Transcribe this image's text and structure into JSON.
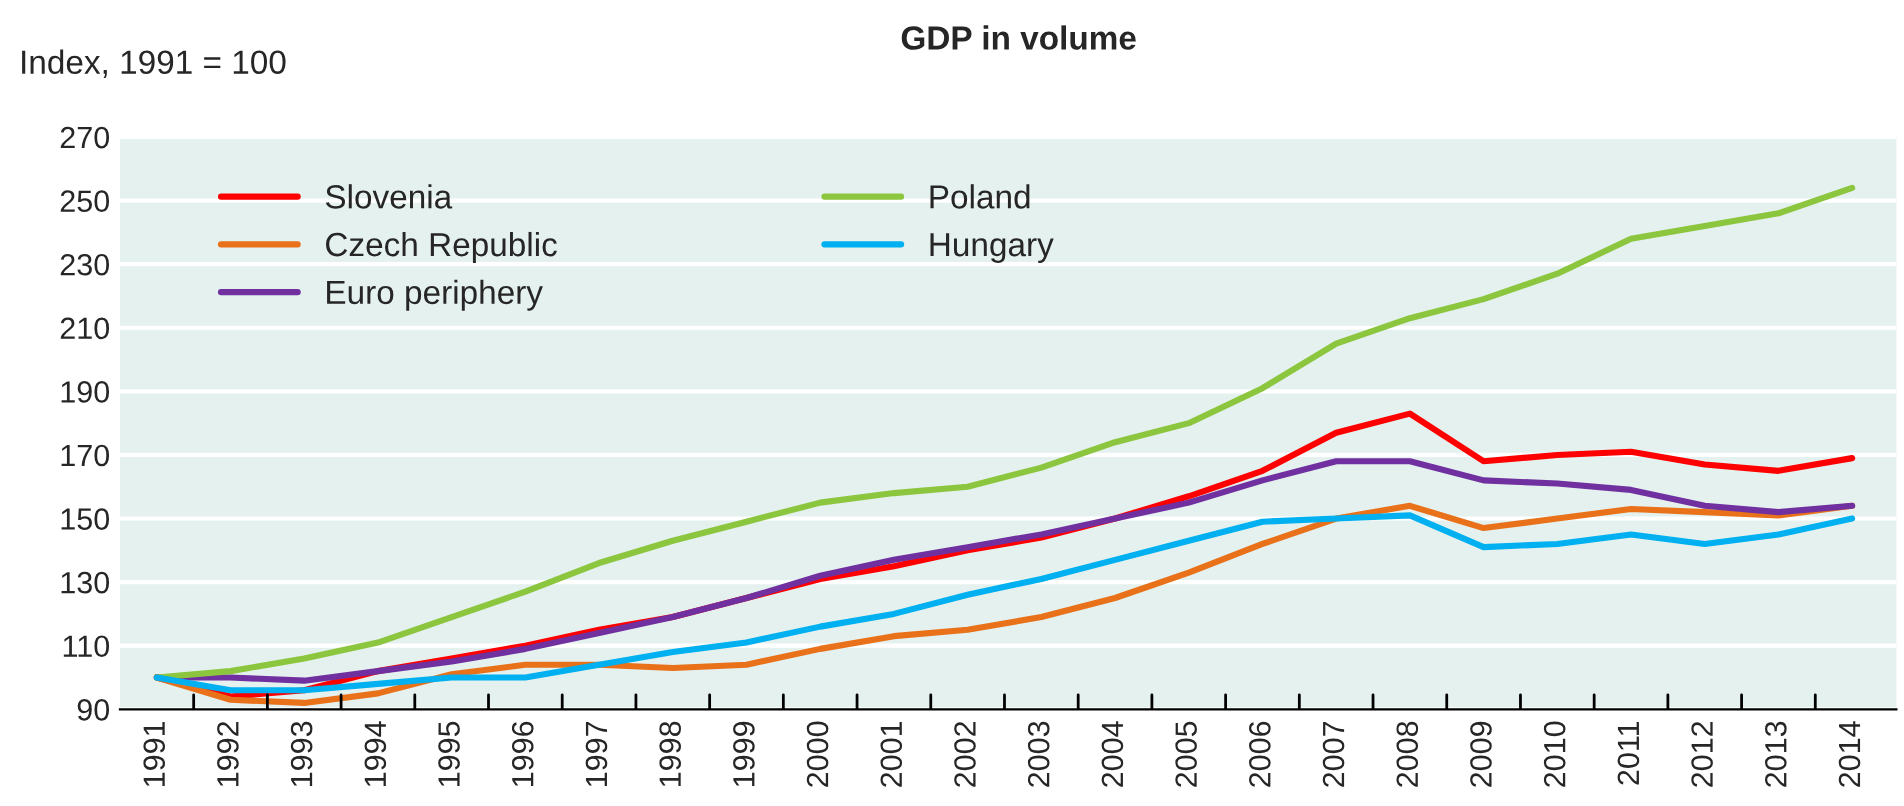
{
  "chart_data": {
    "type": "line",
    "title": "GDP in volume",
    "ylabel": "Index, 1991 = 100",
    "categories": [
      "1991",
      "1992",
      "1993",
      "1994",
      "1995",
      "1996",
      "1997",
      "1998",
      "1999",
      "2000",
      "2001",
      "2002",
      "2003",
      "2004",
      "2005",
      "2006",
      "2007",
      "2008",
      "2009",
      "2010",
      "2011",
      "2012",
      "2013",
      "2014"
    ],
    "series": [
      {
        "name": "Slovenia",
        "color": "#ff0000",
        "values": [
          100,
          94,
          96,
          102,
          106,
          110,
          115,
          119,
          125,
          131,
          135,
          140,
          144,
          150,
          157,
          165,
          177,
          183,
          168,
          170,
          171,
          167,
          165,
          169
        ]
      },
      {
        "name": "Czech Republic",
        "color": "#e8711a",
        "values": [
          100,
          93,
          92,
          95,
          101,
          104,
          104,
          103,
          104,
          109,
          113,
          115,
          119,
          125,
          133,
          142,
          150,
          154,
          147,
          150,
          153,
          152,
          151,
          154
        ]
      },
      {
        "name": "Euro periphery",
        "color": "#7030a0",
        "values": [
          100,
          100,
          99,
          102,
          105,
          109,
          114,
          119,
          125,
          132,
          137,
          141,
          145,
          150,
          155,
          162,
          168,
          168,
          162,
          161,
          159,
          154,
          152,
          154
        ]
      },
      {
        "name": "Poland",
        "color": "#8cc63f",
        "values": [
          100,
          102,
          106,
          111,
          119,
          127,
          136,
          143,
          149,
          155,
          158,
          160,
          166,
          174,
          180,
          191,
          205,
          213,
          219,
          227,
          238,
          242,
          246,
          254
        ]
      },
      {
        "name": "Hungary",
        "color": "#00b0f0",
        "values": [
          100,
          96,
          96,
          98,
          100,
          100,
          104,
          108,
          111,
          116,
          120,
          126,
          131,
          137,
          143,
          149,
          150,
          151,
          141,
          142,
          145,
          142,
          145,
          150
        ]
      }
    ],
    "ylim": [
      90,
      270
    ],
    "yticks": [
      90,
      110,
      130,
      150,
      170,
      190,
      210,
      230,
      250,
      270
    ],
    "grid": "y",
    "legend": "top left",
    "line_style": "solid",
    "marker": "none"
  }
}
